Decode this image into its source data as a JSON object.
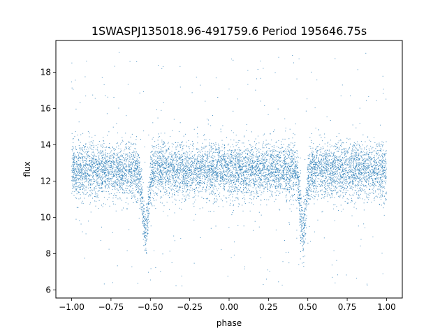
{
  "chart_data": {
    "type": "scatter",
    "title": "1SWASPJ135018.96-491759.6 Period 195646.75s",
    "xlabel": "phase",
    "ylabel": "flux",
    "xlim": [
      -1.1,
      1.1
    ],
    "ylim": [
      5.55,
      19.75
    ],
    "xticks": [
      -1.0,
      -0.75,
      -0.5,
      -0.25,
      0.0,
      0.25,
      0.5,
      0.75,
      1.0
    ],
    "xtick_labels": [
      "−1.00",
      "−0.75",
      "−0.50",
      "−0.25",
      "0.00",
      "0.25",
      "0.50",
      "0.75",
      "1.00"
    ],
    "yticks": [
      6,
      8,
      10,
      12,
      14,
      16,
      18
    ],
    "ytick_labels": [
      "6",
      "8",
      "10",
      "12",
      "14",
      "16",
      "18"
    ],
    "grid": false,
    "legend": "none",
    "marker_color": "#1f77b4",
    "series": [
      {
        "phase_range": [
          -1.0,
          1.0
        ],
        "baseline_flux": 12.6,
        "baseline_spread": 0.75,
        "typical_range": [
          11.0,
          14.4
        ],
        "eclipse_dips": [
          {
            "phase": -0.53,
            "min_flux": 8.6
          },
          {
            "phase": 0.47,
            "min_flux": 8.6
          }
        ],
        "outlier_range": [
          6.2,
          19.2
        ]
      }
    ]
  }
}
